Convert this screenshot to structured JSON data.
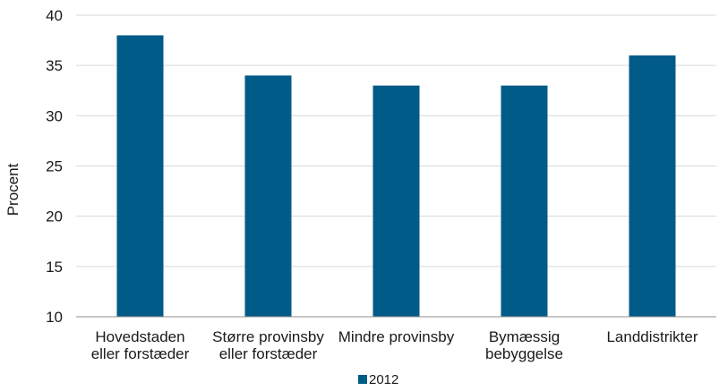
{
  "chart_data": {
    "type": "bar",
    "title": "",
    "xlabel": "",
    "ylabel": "Procent",
    "ylim": [
      10,
      40
    ],
    "yticks": [
      "10",
      "15",
      "20",
      "25",
      "30",
      "35",
      "40"
    ],
    "grid": true,
    "legend_position": "bottom",
    "categories": [
      [
        "Hovedstaden",
        "eller forstæder"
      ],
      [
        "Større provinsby",
        "eller forstæder"
      ],
      [
        "Mindre provinsby"
      ],
      [
        "Bymæssig",
        "bebyggelse"
      ],
      [
        "Landdistrikter"
      ]
    ],
    "series": [
      {
        "name": "2012",
        "color": "#005b88",
        "values": [
          38,
          34,
          33,
          33,
          36
        ]
      }
    ]
  }
}
